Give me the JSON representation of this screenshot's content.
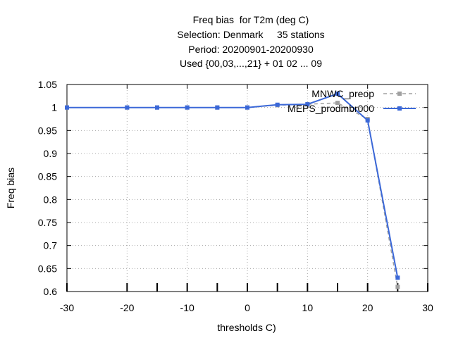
{
  "chart_data": {
    "type": "line",
    "title_lines": [
      "Freq bias  for T2m (deg C)",
      "Selection: Denmark     35 stations",
      "Period: 20200901-20200930",
      "Used {00,03,...,21} + 01 02 ... 09"
    ],
    "xlabel": "thresholds C)",
    "ylabel": "Freq bias",
    "xlim": [
      -30,
      30
    ],
    "ylim": [
      0.6,
      1.05
    ],
    "x_ticks": [
      -30,
      -20,
      -10,
      0,
      10,
      20,
      30
    ],
    "y_ticks": [
      0.6,
      0.65,
      0.7,
      0.75,
      0.8,
      0.85,
      0.9,
      0.95,
      1,
      1.05
    ],
    "x_tick_labels": [
      "-30",
      "-20",
      "-10",
      "0",
      "10",
      "20",
      "30"
    ],
    "y_tick_labels": [
      "0.6",
      "0.65",
      "0.7",
      "0.75",
      "0.8",
      "0.85",
      "0.9",
      "0.95",
      "1",
      "1.05"
    ],
    "grid": true,
    "legend_position": "top-right",
    "series": [
      {
        "name": "MNWC_preop",
        "color": "#a0a0a0",
        "dashed": true,
        "x": [
          -30,
          -20,
          -15,
          -10,
          -5,
          0,
          5,
          10,
          15,
          20,
          25
        ],
        "y": [
          1.0,
          1.0,
          1.0,
          1.0,
          1.0,
          1.0,
          1.005,
          1.007,
          1.01,
          0.975,
          0.61
        ]
      },
      {
        "name": "MEPS_prodmbr000",
        "color": "#3b68d8",
        "dashed": false,
        "x": [
          -30,
          -20,
          -15,
          -10,
          -5,
          0,
          5,
          10,
          15,
          20,
          25
        ],
        "y": [
          1.0,
          1.0,
          1.0,
          1.0,
          1.0,
          1.0,
          1.006,
          1.007,
          1.03,
          0.972,
          0.63
        ]
      }
    ]
  }
}
